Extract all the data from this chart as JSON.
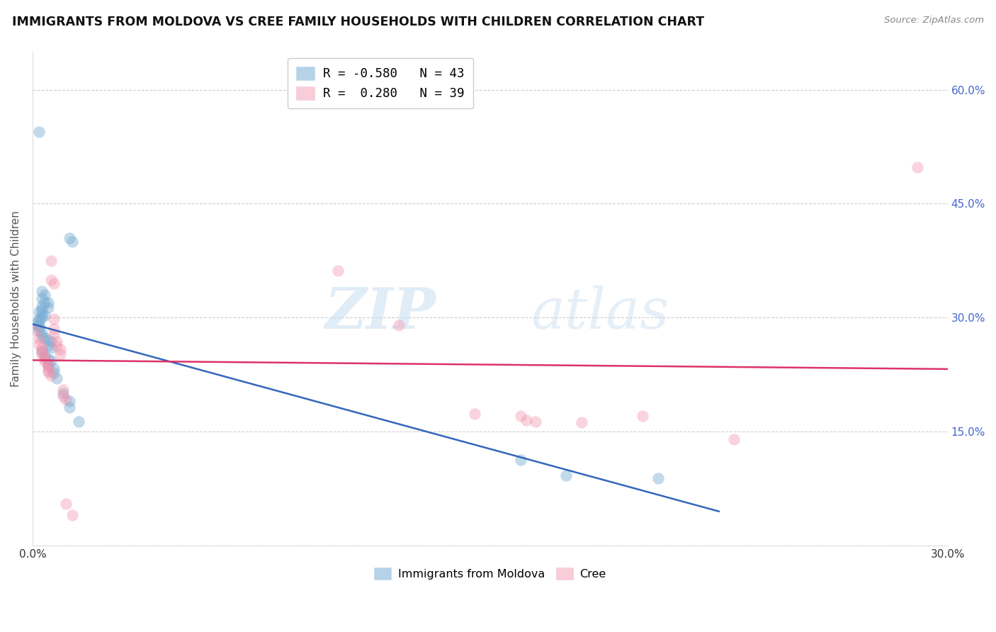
{
  "title": "IMMIGRANTS FROM MOLDOVA VS CREE FAMILY HOUSEHOLDS WITH CHILDREN CORRELATION CHART",
  "source": "Source: ZipAtlas.com",
  "ylabel": "Family Households with Children",
  "xlim": [
    0.0,
    0.3
  ],
  "ylim": [
    0.0,
    0.65
  ],
  "background_color": "#ffffff",
  "grid_color": "#cccccc",
  "watermark": "ZIPatlas",
  "blue_color": "#7aadd4",
  "pink_color": "#f090aa",
  "blue_line_color": "#3366bb",
  "pink_line_color": "#dd3366",
  "blue_scatter": [
    [
      0.002,
      0.545
    ],
    [
      0.012,
      0.405
    ],
    [
      0.013,
      0.4
    ],
    [
      0.003,
      0.335
    ],
    [
      0.004,
      0.33
    ],
    [
      0.003,
      0.325
    ],
    [
      0.004,
      0.32
    ],
    [
      0.005,
      0.32
    ],
    [
      0.003,
      0.315
    ],
    [
      0.005,
      0.313
    ],
    [
      0.003,
      0.31
    ],
    [
      0.002,
      0.308
    ],
    [
      0.003,
      0.305
    ],
    [
      0.004,
      0.303
    ],
    [
      0.003,
      0.3
    ],
    [
      0.002,
      0.298
    ],
    [
      0.002,
      0.295
    ],
    [
      0.001,
      0.292
    ],
    [
      0.002,
      0.29
    ],
    [
      0.002,
      0.288
    ],
    [
      0.002,
      0.283
    ],
    [
      0.003,
      0.28
    ],
    [
      0.003,
      0.275
    ],
    [
      0.004,
      0.273
    ],
    [
      0.005,
      0.27
    ],
    [
      0.006,
      0.268
    ],
    [
      0.005,
      0.263
    ],
    [
      0.006,
      0.26
    ],
    [
      0.003,
      0.255
    ],
    [
      0.004,
      0.25
    ],
    [
      0.005,
      0.245
    ],
    [
      0.006,
      0.243
    ],
    [
      0.005,
      0.238
    ],
    [
      0.007,
      0.233
    ],
    [
      0.007,
      0.227
    ],
    [
      0.008,
      0.22
    ],
    [
      0.01,
      0.2
    ],
    [
      0.012,
      0.19
    ],
    [
      0.012,
      0.182
    ],
    [
      0.015,
      0.163
    ],
    [
      0.16,
      0.113
    ],
    [
      0.175,
      0.092
    ],
    [
      0.205,
      0.088
    ]
  ],
  "pink_scatter": [
    [
      0.001,
      0.283
    ],
    [
      0.002,
      0.272
    ],
    [
      0.002,
      0.265
    ],
    [
      0.003,
      0.26
    ],
    [
      0.003,
      0.256
    ],
    [
      0.003,
      0.252
    ],
    [
      0.004,
      0.248
    ],
    [
      0.004,
      0.245
    ],
    [
      0.004,
      0.242
    ],
    [
      0.005,
      0.238
    ],
    [
      0.005,
      0.235
    ],
    [
      0.005,
      0.23
    ],
    [
      0.005,
      0.228
    ],
    [
      0.006,
      0.224
    ],
    [
      0.006,
      0.375
    ],
    [
      0.006,
      0.35
    ],
    [
      0.007,
      0.345
    ],
    [
      0.007,
      0.298
    ],
    [
      0.007,
      0.285
    ],
    [
      0.007,
      0.278
    ],
    [
      0.008,
      0.268
    ],
    [
      0.008,
      0.263
    ],
    [
      0.009,
      0.258
    ],
    [
      0.009,
      0.252
    ],
    [
      0.01,
      0.205
    ],
    [
      0.01,
      0.197
    ],
    [
      0.011,
      0.192
    ],
    [
      0.011,
      0.055
    ],
    [
      0.013,
      0.04
    ],
    [
      0.1,
      0.362
    ],
    [
      0.12,
      0.29
    ],
    [
      0.145,
      0.173
    ],
    [
      0.16,
      0.17
    ],
    [
      0.162,
      0.165
    ],
    [
      0.165,
      0.163
    ],
    [
      0.18,
      0.162
    ],
    [
      0.2,
      0.17
    ],
    [
      0.23,
      0.14
    ],
    [
      0.29,
      0.498
    ]
  ]
}
